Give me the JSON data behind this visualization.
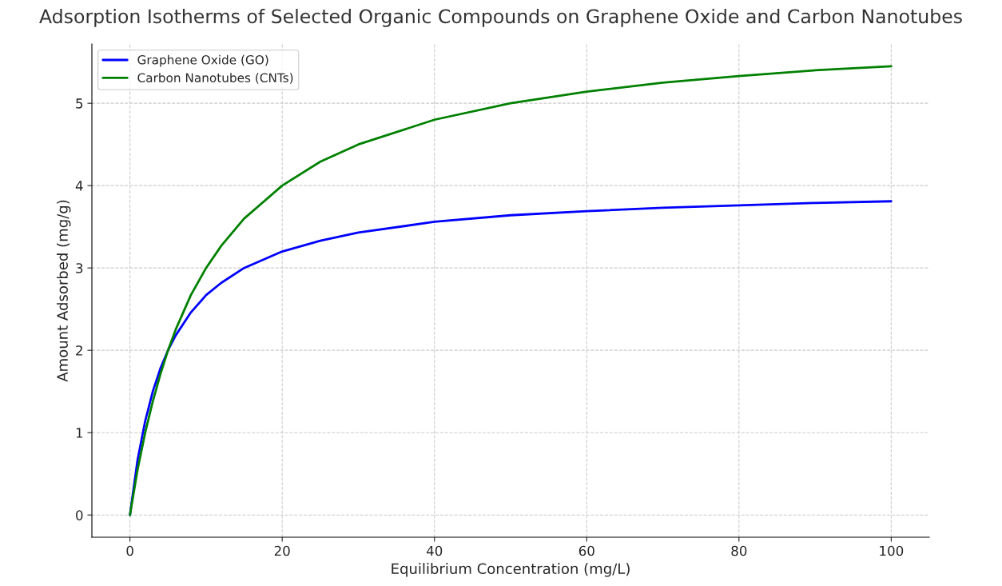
{
  "chart_data": {
    "type": "line",
    "title": "Adsorption Isotherms of Selected Organic Compounds on Graphene Oxide and Carbon Nanotubes",
    "xlabel": "Equilibrium Concentration (mg/L)",
    "ylabel": "Amount Adsorbed (mg/g)",
    "x": [
      0,
      1,
      2,
      3,
      4,
      5,
      6,
      8,
      10,
      12,
      15,
      20,
      25,
      30,
      40,
      50,
      60,
      70,
      80,
      90,
      100
    ],
    "series": [
      {
        "name": "Graphene Oxide (GO)",
        "color": "#0000ff",
        "values": [
          0,
          0.67,
          1.14,
          1.5,
          1.78,
          2.0,
          2.18,
          2.46,
          2.67,
          2.82,
          3.0,
          3.2,
          3.33,
          3.43,
          3.56,
          3.64,
          3.69,
          3.73,
          3.76,
          3.79,
          3.81
        ]
      },
      {
        "name": "Carbon Nanotubes (CNTs)",
        "color": "#008000",
        "values": [
          0,
          0.55,
          1.0,
          1.38,
          1.71,
          2.0,
          2.25,
          2.67,
          3.0,
          3.27,
          3.6,
          4.0,
          4.29,
          4.5,
          4.8,
          5.0,
          5.14,
          5.25,
          5.33,
          5.4,
          5.45
        ]
      }
    ],
    "xlim": [
      -5,
      105
    ],
    "ylim": [
      -0.27,
      5.72
    ],
    "xticks": [
      0,
      20,
      40,
      60,
      80,
      100
    ],
    "yticks": [
      0,
      1,
      2,
      3,
      4,
      5
    ],
    "grid": true,
    "legend": "top left",
    "line_style": "solid",
    "marker": "none"
  }
}
